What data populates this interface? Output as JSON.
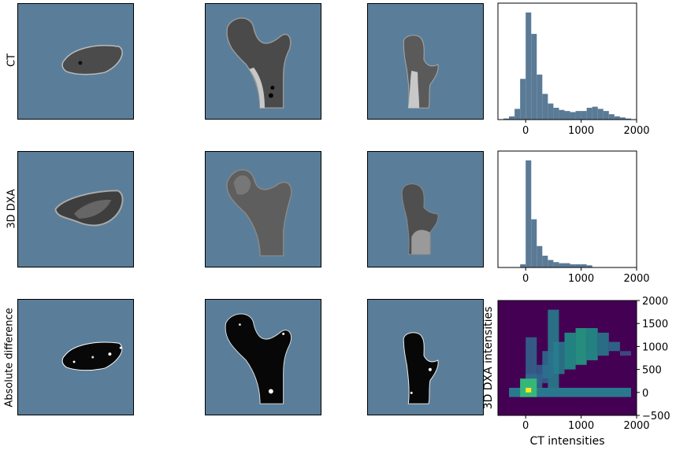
{
  "row_labels": [
    "CT",
    "3D DXA",
    "Absolute difference"
  ],
  "colors": {
    "panel_bg": "#5a7e99",
    "hist_bar": "#5a7a96",
    "heat_low": "#440154",
    "heat_high": "#fde725"
  },
  "chart_data": [
    {
      "type": "bar",
      "title": "",
      "xlabel": "",
      "ylabel": "",
      "xlim": [
        -500,
        2000
      ],
      "xticks": [
        "0",
        "1000",
        "2000"
      ],
      "bins": [
        -400,
        -300,
        -200,
        -100,
        0,
        100,
        200,
        300,
        400,
        500,
        600,
        700,
        800,
        900,
        1000,
        1100,
        1200,
        1300,
        1400,
        1500,
        1600,
        1700,
        1800
      ],
      "values": [
        0.01,
        0.03,
        0.1,
        0.38,
        1.0,
        0.8,
        0.42,
        0.24,
        0.15,
        0.11,
        0.09,
        0.08,
        0.07,
        0.08,
        0.08,
        0.11,
        0.12,
        0.1,
        0.08,
        0.05,
        0.03,
        0.02,
        0.01
      ]
    },
    {
      "type": "bar",
      "title": "",
      "xlabel": "",
      "ylabel": "",
      "xlim": [
        -500,
        2000
      ],
      "xticks": [
        "0",
        "1000",
        "2000"
      ],
      "bins": [
        -100,
        0,
        100,
        200,
        300,
        400,
        500,
        600,
        700,
        800,
        900,
        1000,
        1100
      ],
      "values": [
        0.03,
        1.0,
        0.45,
        0.2,
        0.11,
        0.07,
        0.05,
        0.04,
        0.04,
        0.03,
        0.03,
        0.03,
        0.02
      ]
    },
    {
      "type": "heatmap",
      "title": "",
      "xlabel": "CT intensities",
      "ylabel": "3D DXA intensities",
      "xlim": [
        -500,
        2000
      ],
      "ylim": [
        -500,
        2000
      ],
      "xticks": [
        "0",
        "1000",
        "2000"
      ],
      "yticks": [
        "2000",
        "1500",
        "1000",
        "500",
        "0",
        "−500"
      ],
      "peak": {
        "x": 50,
        "y": 50
      }
    }
  ]
}
